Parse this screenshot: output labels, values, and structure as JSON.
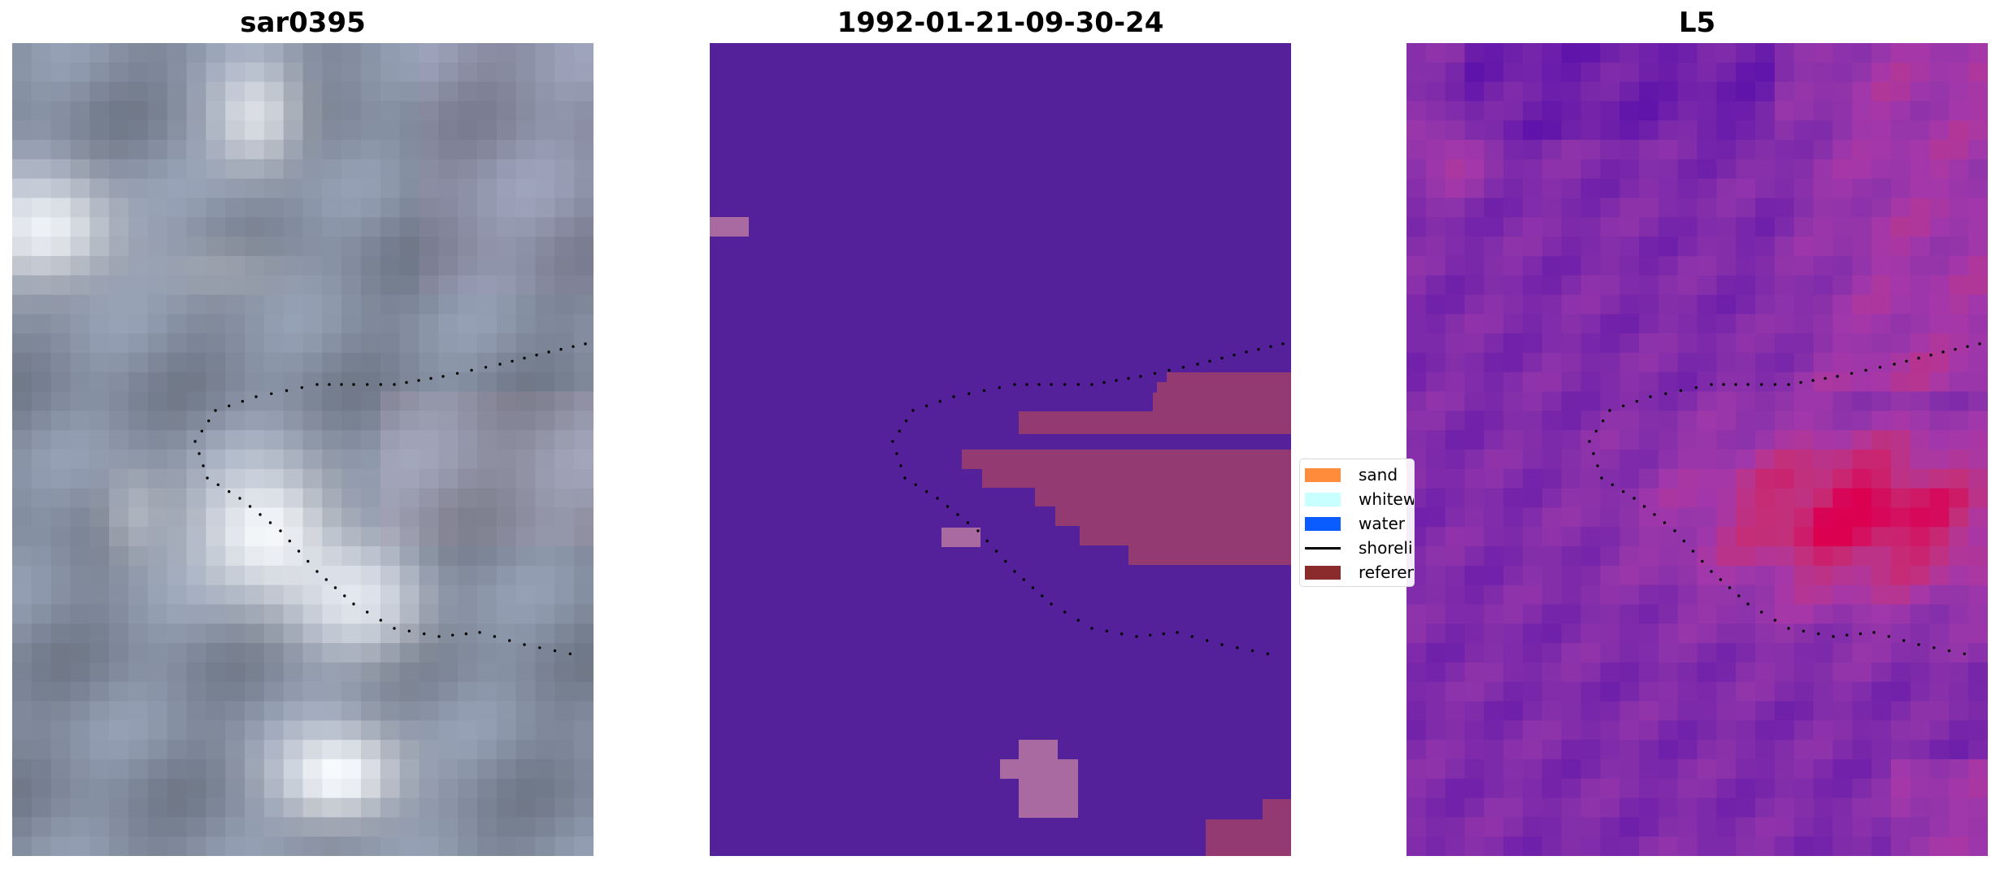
{
  "panels": [
    {
      "title": "sar0395",
      "style": "rgb"
    },
    {
      "title": "1992-01-21-09-30-24",
      "style": "classification"
    },
    {
      "title": "L5",
      "style": "probability"
    }
  ],
  "legend": {
    "items": [
      {
        "label": "sand",
        "color": "#ff8c3a",
        "kind": "patch"
      },
      {
        "label": "whitewater",
        "color": "#c8ffff",
        "kind": "patch"
      },
      {
        "label": "water",
        "color": "#0a5cff",
        "kind": "patch"
      },
      {
        "label": "shoreline",
        "color": "#000000",
        "kind": "line"
      },
      {
        "label": "reference",
        "color": "#8c2b2b",
        "kind": "patch"
      }
    ]
  },
  "colors": {
    "water_class": "#54219a",
    "shoreline_dots": "#000000"
  }
}
